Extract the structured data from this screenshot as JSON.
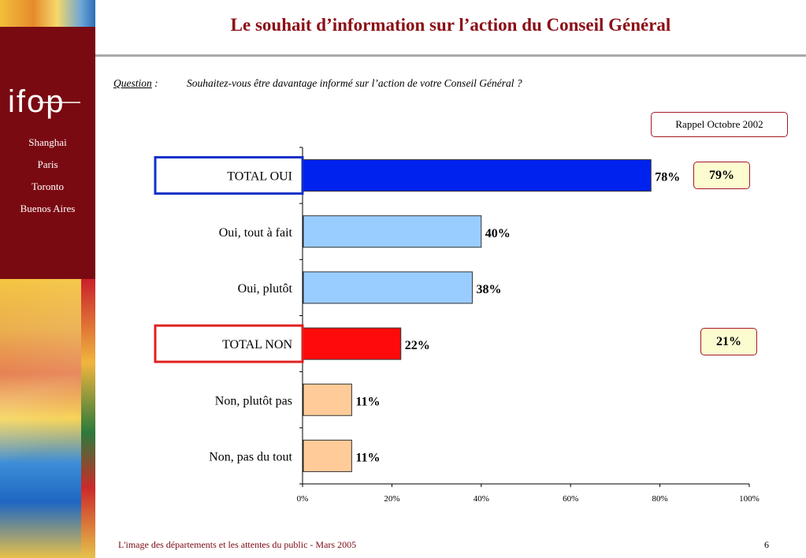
{
  "branding": {
    "logo_text": "ifop",
    "cities": [
      "Shanghai",
      "Paris",
      "Toronto",
      "Buenos Aires"
    ]
  },
  "title": "Le souhait d’information sur l’action du Conseil Général",
  "question": {
    "label": "Question",
    "separator": " :",
    "text": "Souhaitez-vous être davantage informé sur l’action de votre Conseil Général ?"
  },
  "comparison": {
    "header": "Rappel Octobre 2002",
    "total_oui": "79%",
    "total_non": "21%"
  },
  "chart_data": {
    "type": "bar",
    "orientation": "horizontal",
    "categories": [
      "TOTAL OUI",
      "Oui, tout à fait",
      "Oui, plutôt",
      "TOTAL NON",
      "Non, plutôt pas",
      "Non, pas du tout"
    ],
    "values": [
      78,
      40,
      38,
      22,
      11,
      11
    ],
    "value_labels": [
      "78%",
      "40%",
      "38%",
      "22%",
      "11%",
      "11%"
    ],
    "highlighted": [
      "blue",
      "",
      "",
      "red",
      "",
      ""
    ],
    "bar_colors": [
      "#0022ee",
      "#99ccff",
      "#99ccff",
      "#ff0a0a",
      "#ffcc99",
      "#ffcc99"
    ],
    "xlim": [
      0,
      100
    ],
    "x_ticks": [
      "0%",
      "20%",
      "40%",
      "60%",
      "80%",
      "100%"
    ],
    "grid": false,
    "legend": "none"
  },
  "footer": {
    "text": "L'image des départements et les attentes du public - Mars 2005",
    "page": "6"
  }
}
